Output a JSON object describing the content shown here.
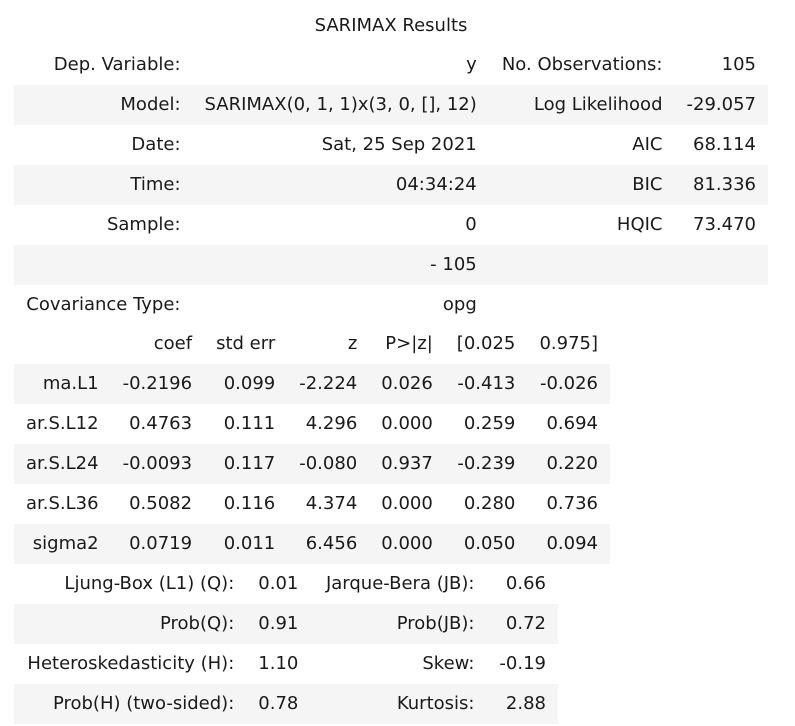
{
  "summary": {
    "title": "SARIMAX Results",
    "rows": [
      [
        "Dep. Variable:",
        "y",
        "No. Observations:",
        "105"
      ],
      [
        "Model:",
        "SARIMAX(0, 1, 1)x(3, 0, [], 12)",
        "Log Likelihood",
        "-29.057"
      ],
      [
        "Date:",
        "Sat, 25 Sep 2021",
        "AIC",
        "68.114"
      ],
      [
        "Time:",
        "04:34:24",
        "BIC",
        "81.336"
      ],
      [
        "Sample:",
        "0",
        "HQIC",
        "73.470"
      ],
      [
        "",
        "- 105",
        "",
        ""
      ],
      [
        "Covariance Type:",
        "opg",
        "",
        ""
      ]
    ]
  },
  "coefficients": {
    "header": [
      "",
      "coef",
      "std err",
      "z",
      "P>|z|",
      "[0.025",
      "0.975]"
    ],
    "rows": [
      [
        "ma.L1",
        "-0.2196",
        "0.099",
        "-2.224",
        "0.026",
        "-0.413",
        "-0.026"
      ],
      [
        "ar.S.L12",
        "0.4763",
        "0.111",
        "4.296",
        "0.000",
        "0.259",
        "0.694"
      ],
      [
        "ar.S.L24",
        "-0.0093",
        "0.117",
        "-0.080",
        "0.937",
        "-0.239",
        "0.220"
      ],
      [
        "ar.S.L36",
        "0.5082",
        "0.116",
        "4.374",
        "0.000",
        "0.280",
        "0.736"
      ],
      [
        "sigma2",
        "0.0719",
        "0.011",
        "6.456",
        "0.000",
        "0.050",
        "0.094"
      ]
    ]
  },
  "diagnostics": {
    "rows": [
      [
        "Ljung-Box (L1) (Q):",
        "0.01",
        "Jarque-Bera (JB):",
        "0.66"
      ],
      [
        "Prob(Q):",
        "0.91",
        "Prob(JB):",
        "0.72"
      ],
      [
        "Heteroskedasticity (H):",
        "1.10",
        "Skew:",
        "-0.19"
      ],
      [
        "Prob(H) (two-sided):",
        "0.78",
        "Kurtosis:",
        "2.88"
      ]
    ]
  }
}
